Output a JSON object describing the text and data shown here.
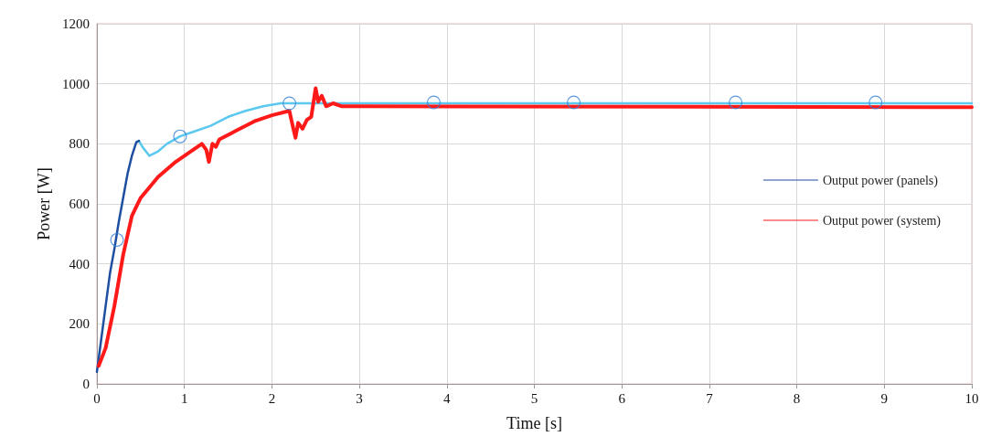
{
  "chart_data": {
    "type": "line",
    "xlabel": "Time [s]",
    "ylabel": "Power [W]",
    "xlim": [
      0,
      10
    ],
    "xticks": [
      0,
      1,
      2,
      3,
      4,
      5,
      6,
      7,
      8,
      9,
      10
    ],
    "ylim": [
      0,
      1200
    ],
    "yticks": [
      0,
      200,
      400,
      600,
      800,
      1000,
      1200
    ],
    "grid": true,
    "legend": "right",
    "line_style": "solid",
    "series": [
      {
        "name": "Output power (panels)",
        "color": "#1f4fa0",
        "x": [
          0,
          0.05,
          0.1,
          0.15,
          0.2,
          0.25,
          0.3,
          0.35,
          0.4,
          0.45,
          0.48
        ],
        "values": [
          40,
          150,
          260,
          370,
          450,
          540,
          620,
          700,
          760,
          805,
          810
        ]
      },
      {
        "color": "#5bc8f0",
        "x": [
          0.48,
          0.52,
          0.6,
          0.7,
          0.8,
          0.95,
          1.1,
          1.3,
          1.5,
          1.7,
          1.9,
          2.1,
          2.4,
          3,
          10
        ],
        "values": [
          810,
          790,
          760,
          775,
          800,
          825,
          840,
          860,
          890,
          910,
          925,
          935,
          935,
          935,
          935
        ]
      },
      {
        "type": "scatter",
        "marker": "circle",
        "color": "#2f7fd8",
        "x": [
          0.23,
          0.95,
          2.2,
          3.85,
          5.45,
          7.3,
          8.9
        ],
        "values": [
          480,
          825,
          935,
          938,
          938,
          938,
          938
        ]
      },
      {
        "name": "Output power (system)",
        "color": "#ff1a1a",
        "x": [
          0.02,
          0.1,
          0.2,
          0.3,
          0.4,
          0.5,
          0.7,
          0.9,
          1.1,
          1.2,
          1.25,
          1.28,
          1.32,
          1.36,
          1.4,
          1.6,
          1.8,
          2.0,
          2.2,
          2.23,
          2.27,
          2.3,
          2.35,
          2.4,
          2.45,
          2.5,
          2.53,
          2.57,
          2.62,
          2.7,
          2.8,
          3,
          10
        ],
        "values": [
          60,
          120,
          260,
          430,
          560,
          620,
          690,
          740,
          780,
          800,
          780,
          740,
          800,
          790,
          815,
          845,
          875,
          895,
          910,
          870,
          820,
          870,
          850,
          880,
          890,
          985,
          940,
          960,
          925,
          935,
          925,
          925,
          922
        ]
      }
    ]
  }
}
